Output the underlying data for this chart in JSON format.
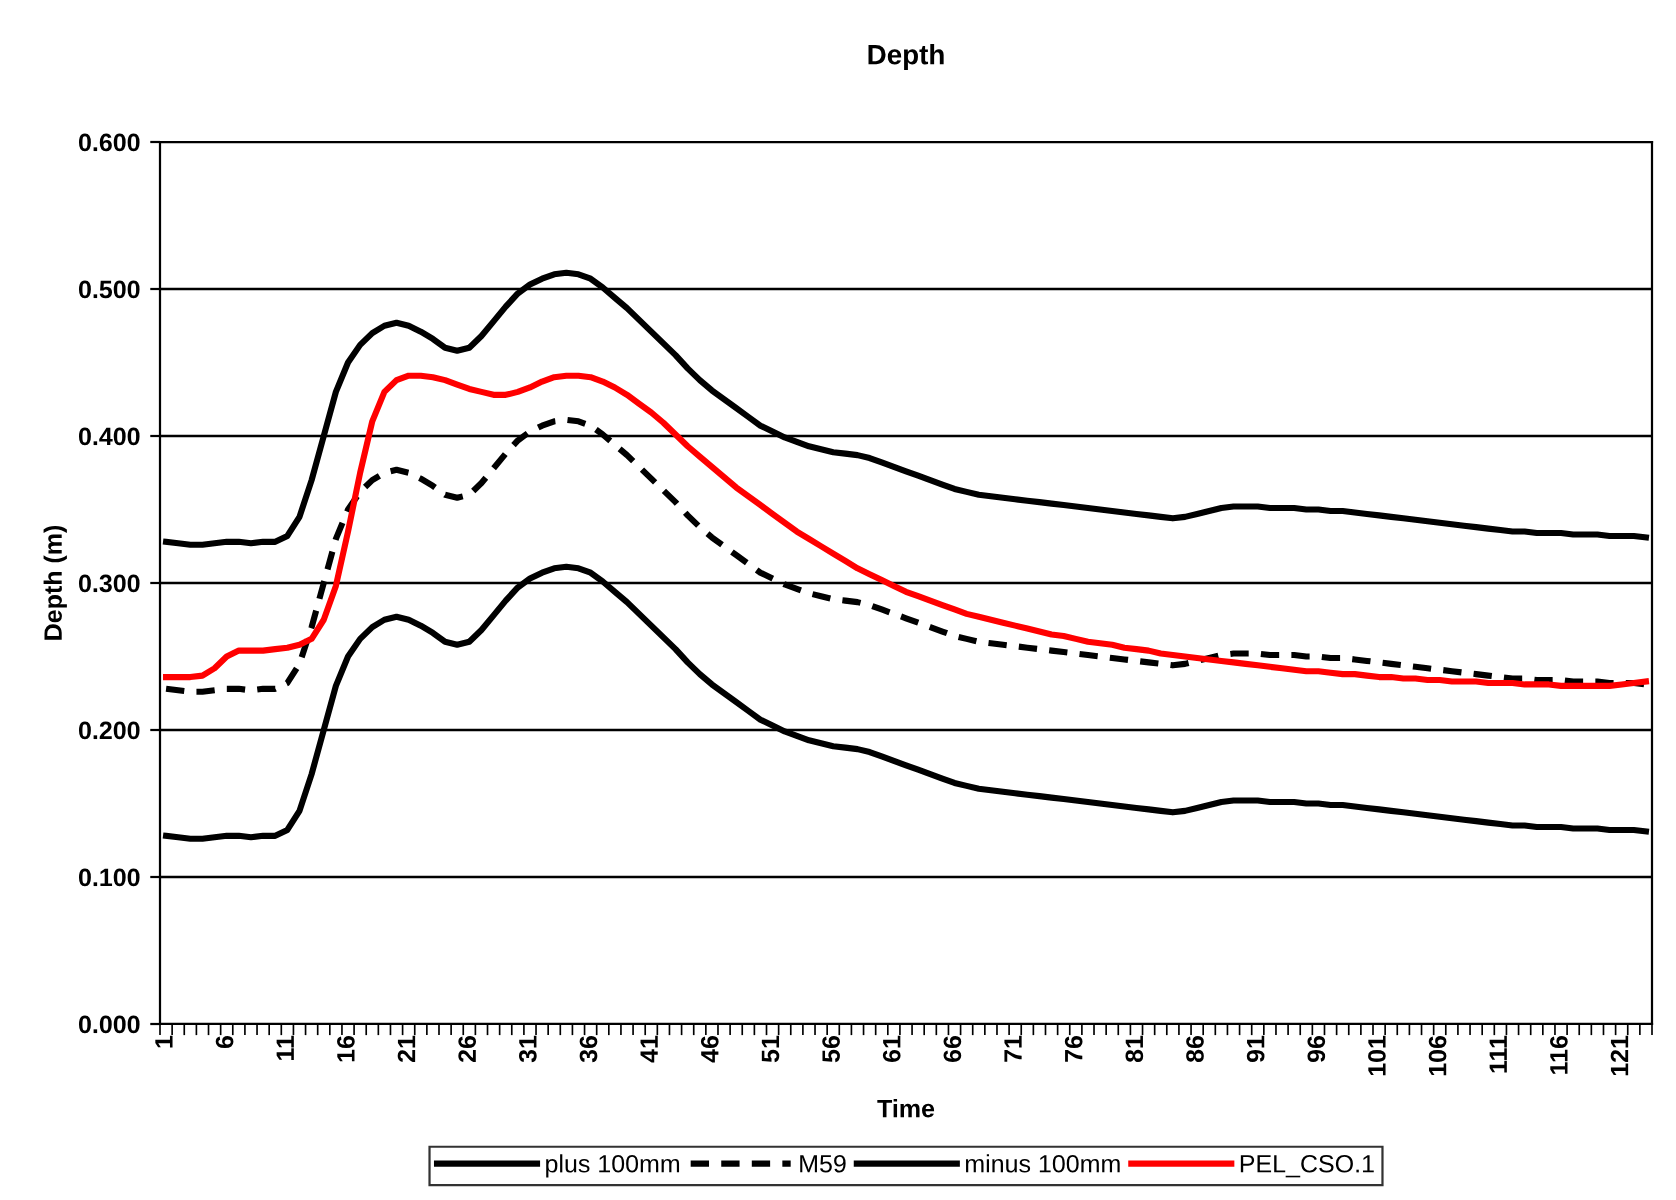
{
  "chart_data": {
    "type": "line",
    "title": "Depth",
    "xlabel": "Time",
    "ylabel": "Depth (m)",
    "categories": [
      "1",
      null,
      null,
      null,
      null,
      "6",
      null,
      null,
      null,
      null,
      "11",
      null,
      null,
      null,
      null,
      "16",
      null,
      null,
      null,
      null,
      "21",
      null,
      null,
      null,
      null,
      "26",
      null,
      null,
      null,
      null,
      "31",
      null,
      null,
      null,
      null,
      "36",
      null,
      null,
      null,
      null,
      "41",
      null,
      null,
      null,
      null,
      "46",
      null,
      null,
      null,
      null,
      "51",
      null,
      null,
      null,
      null,
      "56",
      null,
      null,
      null,
      null,
      "61",
      null,
      null,
      null,
      null,
      "66",
      null,
      null,
      null,
      null,
      "71",
      null,
      null,
      null,
      null,
      "76",
      null,
      null,
      null,
      null,
      "81",
      null,
      null,
      null,
      null,
      "86",
      null,
      null,
      null,
      null,
      "91",
      null,
      null,
      null,
      null,
      "96",
      null,
      null,
      null,
      null,
      "101",
      null,
      null,
      null,
      null,
      "106",
      null,
      null,
      null,
      null,
      "111",
      null,
      null,
      null,
      null,
      "116",
      null,
      null,
      null,
      null,
      "121",
      null,
      null
    ],
    "ylim": [
      0,
      0.6
    ],
    "yticks": [
      {
        "value": 0,
        "label": "0.000"
      },
      {
        "value": 0.1,
        "label": "0.100"
      },
      {
        "value": 0.2,
        "label": "0.200"
      },
      {
        "value": 0.3,
        "label": "0.300"
      },
      {
        "value": 0.4,
        "label": "0.400"
      },
      {
        "value": 0.5,
        "label": "0.500"
      },
      {
        "value": 0.6,
        "label": "0.600"
      }
    ],
    "grid": "y",
    "legend": "bottom",
    "marker": "none",
    "series": [
      {
        "name": "plus 100mm",
        "color": "#000000",
        "line_style": "solid",
        "values": [
          0.328,
          0.327,
          0.326,
          0.326,
          0.327,
          0.328,
          0.328,
          0.327,
          0.328,
          0.328,
          0.332,
          0.345,
          0.37,
          0.4,
          0.43,
          0.45,
          0.462,
          0.47,
          0.475,
          0.477,
          0.475,
          0.471,
          0.466,
          0.46,
          0.458,
          0.46,
          0.468,
          0.478,
          0.488,
          0.497,
          0.503,
          0.507,
          0.51,
          0.511,
          0.51,
          0.507,
          0.501,
          0.494,
          0.487,
          0.479,
          0.471,
          0.463,
          0.455,
          0.446,
          0.438,
          0.431,
          0.425,
          0.419,
          0.413,
          0.407,
          0.403,
          0.399,
          0.396,
          0.393,
          0.391,
          0.389,
          0.388,
          0.387,
          0.385,
          0.382,
          0.379,
          0.376,
          0.373,
          0.37,
          0.367,
          0.364,
          0.362,
          0.36,
          0.359,
          0.358,
          0.357,
          0.356,
          0.355,
          0.354,
          0.353,
          0.352,
          0.351,
          0.35,
          0.349,
          0.348,
          0.347,
          0.346,
          0.345,
          0.344,
          0.345,
          0.347,
          0.349,
          0.351,
          0.352,
          0.352,
          0.352,
          0.351,
          0.351,
          0.351,
          0.35,
          0.35,
          0.349,
          0.349,
          0.348,
          0.347,
          0.346,
          0.345,
          0.344,
          0.343,
          0.342,
          0.341,
          0.34,
          0.339,
          0.338,
          0.337,
          0.336,
          0.335,
          0.335,
          0.334,
          0.334,
          0.334,
          0.333,
          0.333,
          0.333,
          0.332,
          0.332,
          0.332,
          0.331
        ]
      },
      {
        "name": "M59",
        "color": "#000000",
        "line_style": "dashed",
        "values": [
          0.228,
          0.227,
          0.226,
          0.226,
          0.227,
          0.228,
          0.228,
          0.227,
          0.228,
          0.228,
          0.232,
          0.245,
          0.27,
          0.3,
          0.33,
          0.35,
          0.362,
          0.37,
          0.375,
          0.377,
          0.375,
          0.371,
          0.366,
          0.36,
          0.358,
          0.36,
          0.368,
          0.378,
          0.388,
          0.397,
          0.403,
          0.407,
          0.41,
          0.411,
          0.41,
          0.407,
          0.401,
          0.394,
          0.387,
          0.379,
          0.371,
          0.363,
          0.355,
          0.346,
          0.338,
          0.331,
          0.325,
          0.319,
          0.313,
          0.307,
          0.303,
          0.299,
          0.296,
          0.293,
          0.291,
          0.289,
          0.288,
          0.287,
          0.285,
          0.282,
          0.279,
          0.276,
          0.273,
          0.27,
          0.267,
          0.264,
          0.262,
          0.26,
          0.259,
          0.258,
          0.257,
          0.256,
          0.255,
          0.254,
          0.253,
          0.252,
          0.251,
          0.25,
          0.249,
          0.248,
          0.247,
          0.246,
          0.245,
          0.244,
          0.245,
          0.247,
          0.249,
          0.251,
          0.252,
          0.252,
          0.252,
          0.251,
          0.251,
          0.251,
          0.25,
          0.25,
          0.249,
          0.249,
          0.248,
          0.247,
          0.246,
          0.245,
          0.244,
          0.243,
          0.242,
          0.241,
          0.24,
          0.239,
          0.238,
          0.237,
          0.236,
          0.235,
          0.235,
          0.234,
          0.234,
          0.234,
          0.233,
          0.233,
          0.233,
          0.232,
          0.232,
          0.232,
          0.231
        ]
      },
      {
        "name": "minus 100mm",
        "color": "#000000",
        "line_style": "solid",
        "values": [
          0.128,
          0.127,
          0.126,
          0.126,
          0.127,
          0.128,
          0.128,
          0.127,
          0.128,
          0.128,
          0.132,
          0.145,
          0.17,
          0.2,
          0.23,
          0.25,
          0.262,
          0.27,
          0.275,
          0.277,
          0.275,
          0.271,
          0.266,
          0.26,
          0.258,
          0.26,
          0.268,
          0.278,
          0.288,
          0.297,
          0.303,
          0.307,
          0.31,
          0.311,
          0.31,
          0.307,
          0.301,
          0.294,
          0.287,
          0.279,
          0.271,
          0.263,
          0.255,
          0.246,
          0.238,
          0.231,
          0.225,
          0.219,
          0.213,
          0.207,
          0.203,
          0.199,
          0.196,
          0.193,
          0.191,
          0.189,
          0.188,
          0.187,
          0.185,
          0.182,
          0.179,
          0.176,
          0.173,
          0.17,
          0.167,
          0.164,
          0.162,
          0.16,
          0.159,
          0.158,
          0.157,
          0.156,
          0.155,
          0.154,
          0.153,
          0.152,
          0.151,
          0.15,
          0.149,
          0.148,
          0.147,
          0.146,
          0.145,
          0.144,
          0.145,
          0.147,
          0.149,
          0.151,
          0.152,
          0.152,
          0.152,
          0.151,
          0.151,
          0.151,
          0.15,
          0.15,
          0.149,
          0.149,
          0.148,
          0.147,
          0.146,
          0.145,
          0.144,
          0.143,
          0.142,
          0.141,
          0.14,
          0.139,
          0.138,
          0.137,
          0.136,
          0.135,
          0.135,
          0.134,
          0.134,
          0.134,
          0.133,
          0.133,
          0.133,
          0.132,
          0.132,
          0.132,
          0.131
        ]
      },
      {
        "name": "PEL_CSO.1",
        "color": "#ff0000",
        "line_style": "solid",
        "values": [
          0.236,
          0.236,
          0.236,
          0.237,
          0.242,
          0.25,
          0.254,
          0.254,
          0.254,
          0.255,
          0.256,
          0.258,
          0.262,
          0.275,
          0.298,
          0.335,
          0.375,
          0.41,
          0.43,
          0.438,
          0.441,
          0.441,
          0.44,
          0.438,
          0.435,
          0.432,
          0.43,
          0.428,
          0.428,
          0.43,
          0.433,
          0.437,
          0.44,
          0.441,
          0.441,
          0.44,
          0.437,
          0.433,
          0.428,
          0.422,
          0.416,
          0.409,
          0.401,
          0.393,
          0.386,
          0.379,
          0.372,
          0.365,
          0.359,
          0.353,
          0.347,
          0.341,
          0.335,
          0.33,
          0.325,
          0.32,
          0.315,
          0.31,
          0.306,
          0.302,
          0.298,
          0.294,
          0.291,
          0.288,
          0.285,
          0.282,
          0.279,
          0.277,
          0.275,
          0.273,
          0.271,
          0.269,
          0.267,
          0.265,
          0.264,
          0.262,
          0.26,
          0.259,
          0.258,
          0.256,
          0.255,
          0.254,
          0.252,
          0.251,
          0.25,
          0.249,
          0.248,
          0.247,
          0.246,
          0.245,
          0.244,
          0.243,
          0.242,
          0.241,
          0.24,
          0.24,
          0.239,
          0.238,
          0.238,
          0.237,
          0.236,
          0.236,
          0.235,
          0.235,
          0.234,
          0.234,
          0.233,
          0.233,
          0.233,
          0.232,
          0.232,
          0.232,
          0.231,
          0.231,
          0.231,
          0.23,
          0.23,
          0.23,
          0.23,
          0.23,
          0.231,
          0.232,
          0.233
        ]
      }
    ]
  }
}
